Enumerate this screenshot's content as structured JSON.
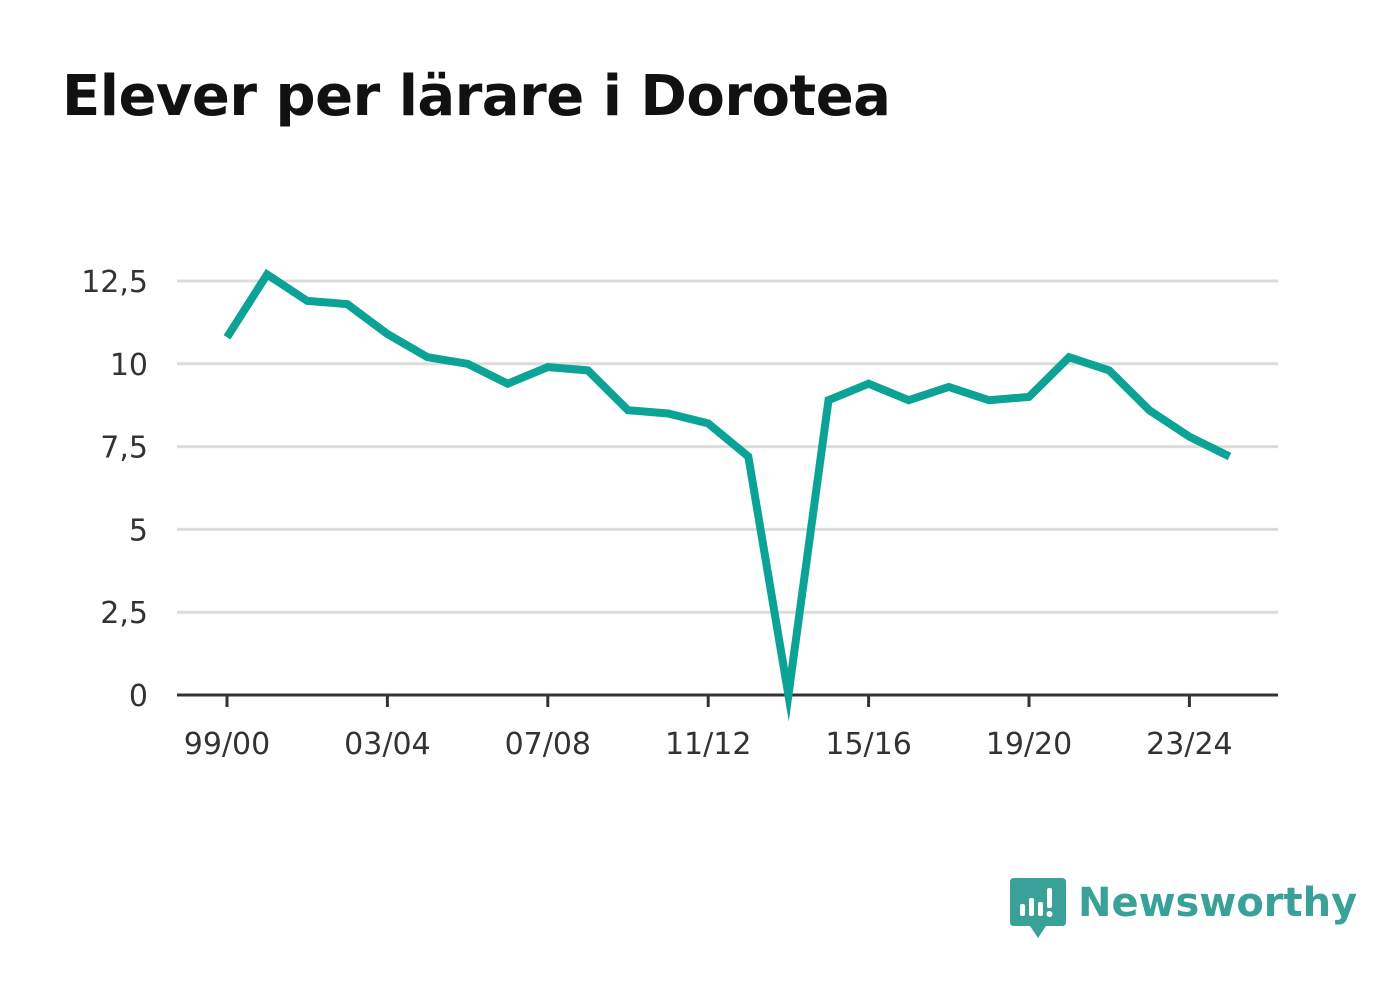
{
  "title": "Elever per lärare i Dorotea",
  "brand": {
    "name": "Newsworthy",
    "color": "#3aa199"
  },
  "colors": {
    "line": "#0aa396",
    "grid": "#dcdcdc",
    "axis": "#333333",
    "text": "#333333"
  },
  "chart_data": {
    "type": "line",
    "title": "Elever per lärare i Dorotea",
    "xlabel": "",
    "ylabel": "",
    "categories": [
      "99/00",
      "00/01",
      "01/02",
      "02/03",
      "03/04",
      "04/05",
      "05/06",
      "06/07",
      "07/08",
      "08/09",
      "09/10",
      "10/11",
      "11/12",
      "12/13",
      "13/14",
      "14/15",
      "15/16",
      "16/17",
      "17/18",
      "18/19",
      "19/20",
      "20/21",
      "21/22",
      "22/23",
      "23/24",
      "24/25"
    ],
    "x_tick_labels": [
      "99/00",
      "03/04",
      "07/08",
      "11/12",
      "15/16",
      "19/20",
      "23/24"
    ],
    "series": [
      {
        "values": [
          10.8,
          12.7,
          11.9,
          11.8,
          10.9,
          10.2,
          10.0,
          9.4,
          9.9,
          9.8,
          8.6,
          8.5,
          8.2,
          7.2,
          0.0,
          8.9,
          9.4,
          8.9,
          9.3,
          8.9,
          9.0,
          10.2,
          9.8,
          8.6,
          7.8,
          7.2
        ]
      }
    ],
    "y_ticks": [
      0,
      2.5,
      5,
      7.5,
      10,
      12.5
    ],
    "y_tick_labels": [
      "0",
      "2,5",
      "5",
      "7,5",
      "10",
      "12,5"
    ],
    "ylim": [
      0,
      12.5
    ],
    "grid": true,
    "legend": "none"
  }
}
